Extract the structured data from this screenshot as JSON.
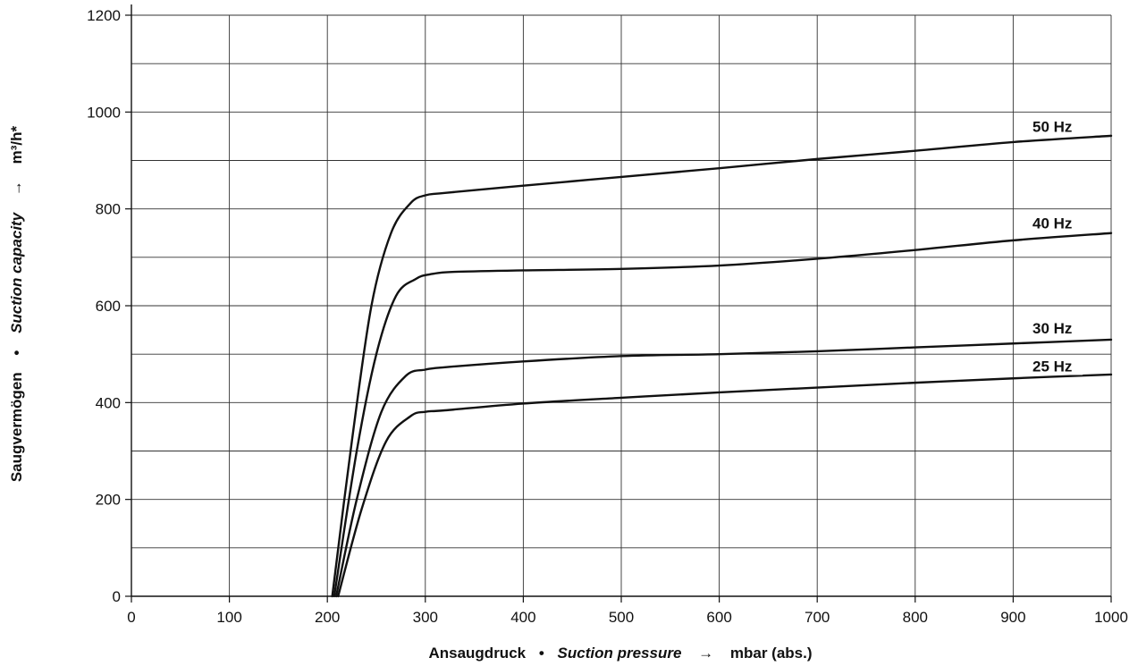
{
  "chart_data": {
    "type": "line",
    "title": "",
    "x_axis": {
      "label": {
        "primary": "Ansaugdruck",
        "separator": "•",
        "secondary": "Suction pressure",
        "arrow": "→",
        "unit": "mbar (abs.)"
      },
      "range": [
        0,
        1000
      ],
      "ticks": [
        0,
        100,
        200,
        300,
        400,
        500,
        600,
        700,
        800,
        900,
        1000
      ],
      "tick_labels": [
        "0",
        "100",
        "200",
        "300",
        "400",
        "500",
        "600",
        "700",
        "800",
        "900",
        "1000"
      ]
    },
    "y_axis": {
      "label": {
        "primary": "Saugvermögen",
        "separator": "•",
        "secondary": "Suction capacity",
        "arrow": "→",
        "unit": "m³/h*"
      },
      "range": [
        0,
        1200
      ],
      "ticks": [
        0,
        200,
        400,
        600,
        800,
        1000,
        1200
      ],
      "tick_labels": [
        "0",
        "200",
        "400",
        "600",
        "800",
        "1000",
        "1200"
      ],
      "minor_gridlines": [
        100,
        300,
        500,
        700,
        900,
        1100
      ]
    },
    "grid": true,
    "series": [
      {
        "name": "50 Hz",
        "color": "#111111",
        "points": [
          [
            205,
            0
          ],
          [
            225,
            320
          ],
          [
            245,
            600
          ],
          [
            265,
            750
          ],
          [
            285,
            812
          ],
          [
            300,
            828
          ],
          [
            320,
            833
          ],
          [
            400,
            848
          ],
          [
            500,
            866
          ],
          [
            600,
            884
          ],
          [
            700,
            903
          ],
          [
            800,
            920
          ],
          [
            900,
            938
          ],
          [
            1000,
            951
          ]
        ]
      },
      {
        "name": "40 Hz",
        "color": "#111111",
        "points": [
          [
            207,
            0
          ],
          [
            230,
            300
          ],
          [
            250,
            500
          ],
          [
            270,
            620
          ],
          [
            290,
            655
          ],
          [
            305,
            665
          ],
          [
            330,
            670
          ],
          [
            400,
            673
          ],
          [
            500,
            676
          ],
          [
            600,
            683
          ],
          [
            700,
            697
          ],
          [
            800,
            715
          ],
          [
            900,
            735
          ],
          [
            1000,
            750
          ]
        ]
      },
      {
        "name": "30 Hz",
        "color": "#111111",
        "points": [
          [
            209,
            0
          ],
          [
            230,
            200
          ],
          [
            255,
            380
          ],
          [
            280,
            455
          ],
          [
            300,
            468
          ],
          [
            320,
            473
          ],
          [
            400,
            485
          ],
          [
            500,
            496
          ],
          [
            600,
            500
          ],
          [
            700,
            506
          ],
          [
            800,
            514
          ],
          [
            900,
            522
          ],
          [
            1000,
            530
          ]
        ]
      },
      {
        "name": "25 Hz",
        "color": "#111111",
        "points": [
          [
            211,
            0
          ],
          [
            235,
            180
          ],
          [
            260,
            320
          ],
          [
            285,
            372
          ],
          [
            300,
            381
          ],
          [
            320,
            384
          ],
          [
            400,
            398
          ],
          [
            500,
            410
          ],
          [
            600,
            421
          ],
          [
            700,
            431
          ],
          [
            800,
            441
          ],
          [
            900,
            450
          ],
          [
            1000,
            458
          ]
        ]
      }
    ],
    "series_labels": [
      {
        "text": "50 Hz",
        "x": 940,
        "y": 965
      },
      {
        "text": "40 Hz",
        "x": 940,
        "y": 765
      },
      {
        "text": "30 Hz",
        "x": 940,
        "y": 548
      },
      {
        "text": "25 Hz",
        "x": 940,
        "y": 470
      }
    ]
  }
}
